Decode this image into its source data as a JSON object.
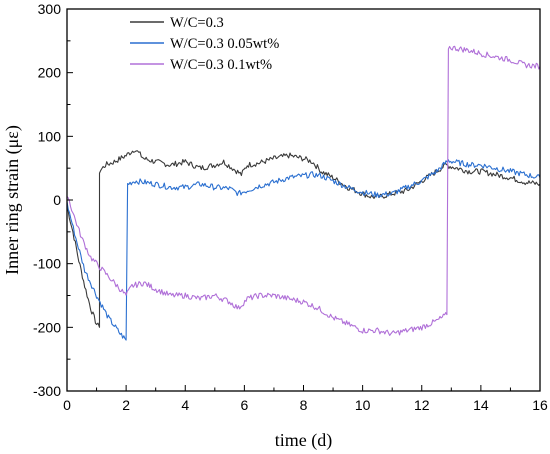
{
  "chart_data": {
    "type": "line",
    "xlabel": "time (d)",
    "ylabel": "Inner ring strain (με)",
    "xlim": [
      0,
      16
    ],
    "ylim": [
      -300,
      300
    ],
    "x_ticks": [
      0,
      2,
      4,
      6,
      8,
      10,
      12,
      14,
      16
    ],
    "y_ticks": [
      -300,
      -200,
      -100,
      0,
      100,
      200,
      300
    ],
    "grid": false,
    "legend_position": "top-left",
    "series": [
      {
        "name": "W/C=0.3",
        "color": "#3a3a3a",
        "x": [
          0,
          0.2,
          0.4,
          0.6,
          0.8,
          1.0,
          1.1,
          1.1,
          1.3,
          1.6,
          2.0,
          2.3,
          2.6,
          3.0,
          3.5,
          4.0,
          4.5,
          5.0,
          5.3,
          5.6,
          5.9,
          6.1,
          6.5,
          7.0,
          7.5,
          8.0,
          8.3,
          8.6,
          9.0,
          9.5,
          10.0,
          10.3,
          10.6,
          11.0,
          11.5,
          12.0,
          12.5,
          12.8,
          13.2,
          13.6,
          14.0,
          14.5,
          15.0,
          15.5,
          16.0
        ],
        "y": [
          -10,
          -50,
          -95,
          -135,
          -170,
          -195,
          -200,
          45,
          55,
          60,
          70,
          80,
          65,
          60,
          55,
          60,
          50,
          55,
          60,
          50,
          40,
          55,
          58,
          65,
          70,
          65,
          60,
          45,
          35,
          20,
          10,
          5,
          5,
          10,
          15,
          30,
          45,
          55,
          50,
          45,
          45,
          40,
          35,
          28,
          25
        ]
      },
      {
        "name": "W/C=0.3 0.05wt%",
        "color": "#2a6fd0",
        "x": [
          0,
          0.3,
          0.6,
          1.0,
          1.4,
          1.8,
          2.0,
          2.05,
          2.3,
          2.6,
          3.0,
          3.5,
          4.0,
          4.5,
          5.0,
          5.5,
          5.8,
          6.1,
          6.5,
          7.0,
          7.5,
          8.0,
          8.3,
          8.6,
          9.0,
          9.5,
          10.0,
          10.5,
          11.0,
          11.5,
          12.0,
          12.5,
          12.9,
          13.3,
          13.7,
          14.0,
          14.5,
          15.0,
          15.5,
          16.0
        ],
        "y": [
          -5,
          -60,
          -110,
          -150,
          -185,
          -210,
          -220,
          25,
          30,
          28,
          25,
          20,
          20,
          25,
          20,
          18,
          10,
          15,
          22,
          28,
          35,
          38,
          40,
          38,
          30,
          20,
          12,
          8,
          10,
          20,
          30,
          45,
          62,
          58,
          55,
          55,
          50,
          45,
          40,
          35
        ]
      },
      {
        "name": "W/C=0.3 0.1wt%",
        "color": "#b070d8",
        "x": [
          0,
          0.2,
          0.5,
          0.8,
          1.1,
          1.4,
          1.7,
          2.0,
          2.2,
          2.6,
          3.0,
          3.5,
          4.0,
          4.5,
          5.0,
          5.5,
          5.8,
          6.1,
          6.5,
          7.0,
          7.5,
          8.0,
          8.5,
          9.0,
          9.5,
          10.0,
          10.5,
          11.0,
          11.5,
          12.0,
          12.5,
          12.85,
          12.9,
          13.2,
          13.6,
          14.0,
          14.5,
          15.0,
          15.5,
          16.0
        ],
        "y": [
          10,
          -20,
          -60,
          -90,
          -105,
          -120,
          -135,
          -150,
          -135,
          -130,
          -140,
          -150,
          -150,
          -155,
          -150,
          -160,
          -170,
          -155,
          -150,
          -150,
          -155,
          -160,
          -170,
          -185,
          -195,
          -205,
          -205,
          -210,
          -205,
          -200,
          -190,
          -180,
          240,
          238,
          235,
          230,
          225,
          220,
          212,
          210
        ]
      }
    ]
  }
}
